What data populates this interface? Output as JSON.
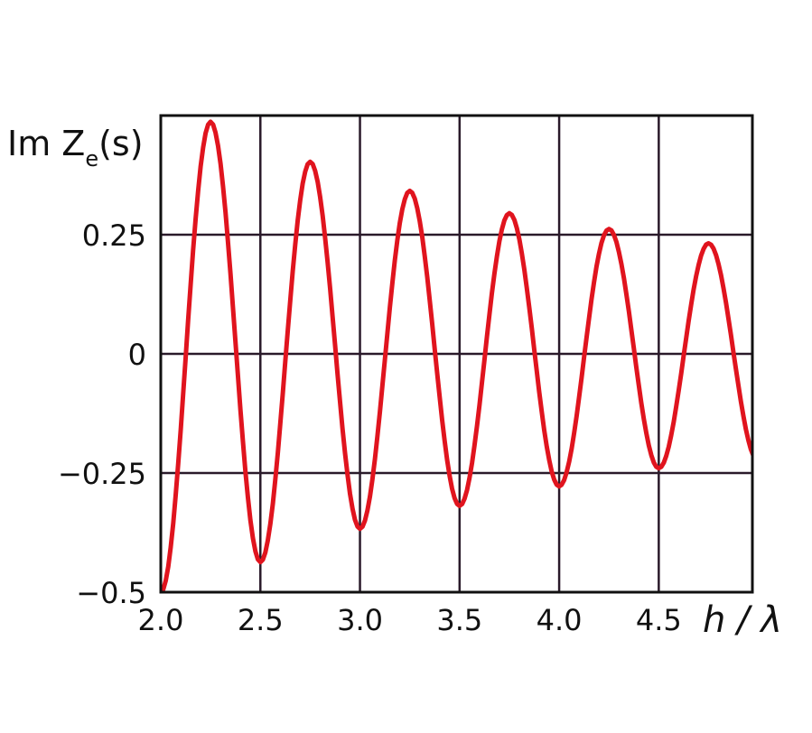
{
  "chart_data": {
    "type": "line",
    "title": "",
    "xlabel": "h / λ",
    "ylabel": "Im Z",
    "ylabel_sub": "e",
    "ylabel_arg": "(s)",
    "xlim": [
      2.0,
      4.97
    ],
    "ylim": [
      -0.5,
      0.5
    ],
    "grid": true,
    "x_ticks": [
      2.0,
      2.5,
      3.0,
      3.5,
      4.0,
      4.5
    ],
    "x_tick_labels": [
      "2.0",
      "2.5",
      "3.0",
      "3.5",
      "4.0",
      "4.5"
    ],
    "y_ticks": [
      -0.5,
      -0.25,
      0,
      0.25
    ],
    "y_tick_labels": [
      "−0.5",
      "−0.25",
      "0",
      "0.25"
    ],
    "y_grid": [
      -0.25,
      0,
      0.25
    ],
    "line_color": "#e0141e",
    "grid_color": "#2a1a2a",
    "series": [
      {
        "x": [
          2.0,
          2.25,
          2.5,
          2.75,
          3.0,
          3.25,
          3.5,
          3.75,
          4.0,
          4.25,
          4.5,
          4.75,
          5.0
        ],
        "y": [
          -0.5,
          0.487,
          -0.437,
          0.403,
          -0.367,
          0.342,
          -0.319,
          0.295,
          -0.278,
          0.262,
          -0.24,
          0.232,
          -0.225
        ]
      }
    ]
  }
}
